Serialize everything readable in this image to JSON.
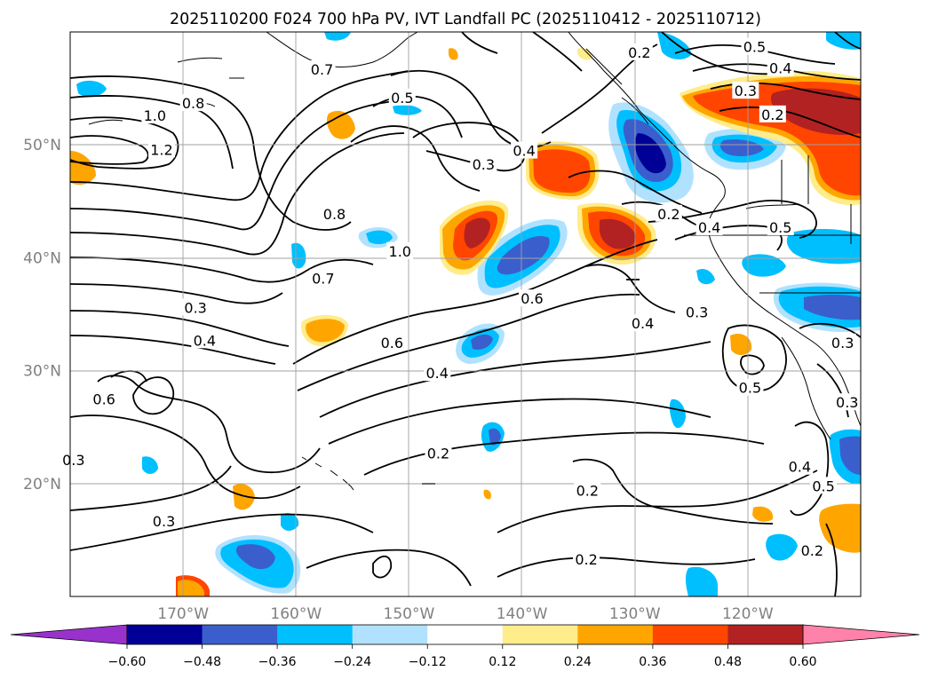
{
  "title": "2025110200 F024 700 hPa PV, IVT Landfall PC (2025110412 - 2025110712)",
  "map": {
    "lon_range": [
      -180,
      -110
    ],
    "lat_range": [
      10,
      60
    ],
    "lon_ticks": [
      {
        "value": -170,
        "label": "170°W"
      },
      {
        "value": -160,
        "label": "160°W"
      },
      {
        "value": -150,
        "label": "150°W"
      },
      {
        "value": -140,
        "label": "140°W"
      },
      {
        "value": -130,
        "label": "130°W"
      },
      {
        "value": -120,
        "label": "120°W"
      }
    ],
    "lat_ticks": [
      {
        "value": 20,
        "label": "20°N"
      },
      {
        "value": 30,
        "label": "30°N"
      },
      {
        "value": 40,
        "label": "40°N"
      },
      {
        "value": 50,
        "label": "50°N"
      }
    ],
    "grid": true,
    "tick_color": "#808080"
  },
  "colorbar": {
    "bounds": [
      -0.6,
      -0.48,
      -0.36,
      -0.24,
      -0.12,
      0.12,
      0.24,
      0.36,
      0.48,
      0.6
    ],
    "labels": [
      "−0.60",
      "−0.48",
      "−0.36",
      "−0.24",
      "−0.12",
      "0.12",
      "0.24",
      "0.36",
      "0.48",
      "0.60"
    ],
    "colors": [
      "#000096",
      "#3a5fcd",
      "#00bfff",
      "#b0e2ff",
      "#ffffff",
      "#ffec8b",
      "#ffa500",
      "#ff4500",
      "#b22222"
    ],
    "under_color": "#9932cc",
    "over_color": "#ff82ab",
    "extend": "both"
  },
  "contour_labels": [
    {
      "text": "0.2",
      "lon": -129.6,
      "lat": 58.2
    },
    {
      "text": "0.5",
      "lon": -119.4,
      "lat": 58.7
    },
    {
      "text": "0.4",
      "lon": -117.1,
      "lat": 56.8
    },
    {
      "text": "0.3",
      "lon": -120.2,
      "lat": 54.8
    },
    {
      "text": "0.2",
      "lon": -117.8,
      "lat": 52.7
    },
    {
      "text": "0.7",
      "lon": -157.7,
      "lat": 56.7
    },
    {
      "text": "0.8",
      "lon": -169.1,
      "lat": 53.7
    },
    {
      "text": "1.0",
      "lon": -172.5,
      "lat": 52.6
    },
    {
      "text": "1.2",
      "lon": -171.9,
      "lat": 49.6
    },
    {
      "text": "0.5",
      "lon": -150.6,
      "lat": 54.2
    },
    {
      "text": "0.3",
      "lon": -143.4,
      "lat": 48.3
    },
    {
      "text": "0.4",
      "lon": -139.8,
      "lat": 49.5
    },
    {
      "text": "0.8",
      "lon": -156.6,
      "lat": 43.9
    },
    {
      "text": "1.0",
      "lon": -150.8,
      "lat": 40.6
    },
    {
      "text": "0.7",
      "lon": -157.6,
      "lat": 38.2
    },
    {
      "text": "0.2",
      "lon": -127.0,
      "lat": 43.9
    },
    {
      "text": "0.4",
      "lon": -123.4,
      "lat": 42.7
    },
    {
      "text": "0.5",
      "lon": -117.1,
      "lat": 42.7
    },
    {
      "text": "0.6",
      "lon": -139.1,
      "lat": 36.4
    },
    {
      "text": "0.3",
      "lon": -168.9,
      "lat": 35.6
    },
    {
      "text": "0.4",
      "lon": -168.1,
      "lat": 32.7
    },
    {
      "text": "0.6",
      "lon": -151.5,
      "lat": 32.5
    },
    {
      "text": "0.4",
      "lon": -129.3,
      "lat": 34.2
    },
    {
      "text": "0.3",
      "lon": -124.5,
      "lat": 35.2
    },
    {
      "text": "0.4",
      "lon": -147.5,
      "lat": 29.8
    },
    {
      "text": "0.5",
      "lon": -119.8,
      "lat": 28.5
    },
    {
      "text": "0.3",
      "lon": -111.6,
      "lat": 32.5
    },
    {
      "text": "0.3",
      "lon": -111.2,
      "lat": 27.2
    },
    {
      "text": "0.6",
      "lon": -177.0,
      "lat": 27.5
    },
    {
      "text": "0.3",
      "lon": -179.7,
      "lat": 22.1
    },
    {
      "text": "0.2",
      "lon": -147.4,
      "lat": 22.7
    },
    {
      "text": "0.4",
      "lon": -115.4,
      "lat": 21.5
    },
    {
      "text": "0.5",
      "lon": -113.3,
      "lat": 19.8
    },
    {
      "text": "0.2",
      "lon": -134.2,
      "lat": 19.4
    },
    {
      "text": "0.3",
      "lon": -171.7,
      "lat": 16.7
    },
    {
      "text": "0.2",
      "lon": -134.3,
      "lat": 13.3
    },
    {
      "text": "0.2",
      "lon": -114.3,
      "lat": 14.1
    }
  ]
}
